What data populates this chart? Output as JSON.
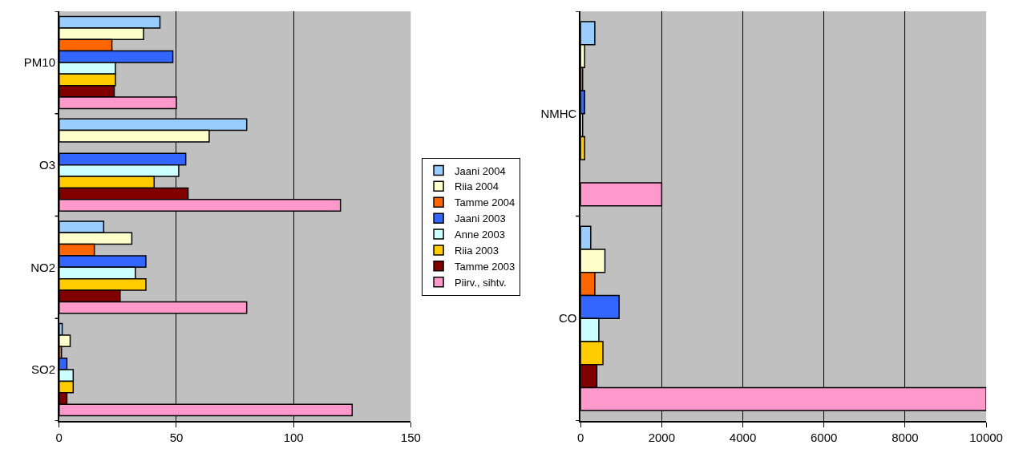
{
  "chart_data": [
    {
      "type": "bar",
      "orientation": "horizontal",
      "categories": [
        "PM10",
        "O3",
        "NO2",
        "SO2"
      ],
      "xlim": [
        0,
        150
      ],
      "xticks": [
        0,
        50,
        100,
        150
      ],
      "grid": "x",
      "legend": "right",
      "series": [
        {
          "name": "Jaani 2004",
          "color": "#99ccff",
          "values": [
            43,
            80,
            19,
            1.3
          ]
        },
        {
          "name": "Riia 2004",
          "color": "#ffffcc",
          "values": [
            36,
            64,
            31,
            4.7
          ]
        },
        {
          "name": "Tamme 2004",
          "color": "#ff6600",
          "values": [
            22.5,
            null,
            15,
            1
          ]
        },
        {
          "name": "Jaani 2003",
          "color": "#3366ff",
          "values": [
            48.5,
            54,
            37,
            3.3
          ]
        },
        {
          "name": "Anne 2003",
          "color": "#ccffff",
          "values": [
            24,
            51,
            32.5,
            6
          ]
        },
        {
          "name": "Riia 2003",
          "color": "#ffcc00",
          "values": [
            24,
            40.5,
            37,
            6
          ]
        },
        {
          "name": "Tamme 2003",
          "color": "#800000",
          "values": [
            23.5,
            55,
            26,
            3.3
          ]
        },
        {
          "name": "Piirv., sihtv.",
          "color": "#ff99cc",
          "values": [
            50,
            120,
            80,
            125
          ]
        }
      ]
    },
    {
      "type": "bar",
      "orientation": "horizontal",
      "categories": [
        "NMHC",
        "CO"
      ],
      "xlim": [
        0,
        10000
      ],
      "xticks": [
        0,
        2000,
        4000,
        6000,
        8000,
        10000
      ],
      "grid": "x",
      "series": [
        {
          "color": "#99ccff",
          "values": [
            350,
            250
          ]
        },
        {
          "color": "#ffffcc",
          "values": [
            100,
            600
          ]
        },
        {
          "color": "#ff6600",
          "values": [
            50,
            350
          ]
        },
        {
          "color": "#3366ff",
          "values": [
            100,
            950
          ]
        },
        {
          "color": "#ccffff",
          "values": [
            50,
            450
          ]
        },
        {
          "color": "#ffcc00",
          "values": [
            100,
            550
          ]
        },
        {
          "color": "#800000",
          "values": [
            null,
            400
          ]
        },
        {
          "color": "#ff99cc",
          "values": [
            2000,
            10000
          ]
        }
      ]
    }
  ]
}
